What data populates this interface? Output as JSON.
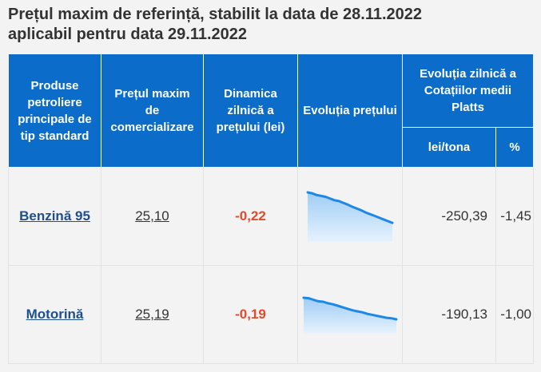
{
  "page": {
    "title_line1": "Prețul maxim de referință, stabilit la data de 28.11.2022",
    "title_line2": "aplicabil pentru data 29.11.2022"
  },
  "table": {
    "headers": {
      "product": "Produse petroliere principale de tip standard",
      "max_price": "Prețul maxim de comercializare",
      "daily_dynamics": "Dinamica zilnică a prețului (lei)",
      "price_evolution": "Evoluția prețului",
      "platts_evolution": "Evoluția zilnică a Cotațiilor medii Platts",
      "lei_tona": "lei/tona",
      "percent": "%"
    },
    "rows": [
      {
        "product": "Benzină 95",
        "max_price": "25,10",
        "daily_dynamics": "-0,22",
        "platts_lei_tona": "-250,39",
        "platts_percent": "-1,45",
        "trend": [
          25.8,
          25.78,
          25.74,
          25.72,
          25.7,
          25.66,
          25.62,
          25.6,
          25.56,
          25.52,
          25.47,
          25.43,
          25.39,
          25.34,
          25.3,
          25.26,
          25.22,
          25.18,
          25.14,
          25.1
        ]
      },
      {
        "product": "Motorină",
        "max_price": "25,19",
        "daily_dynamics": "-0,19",
        "platts_lei_tona": "-190,13",
        "platts_percent": "-1,00",
        "trend": [
          25.62,
          25.61,
          25.58,
          25.55,
          25.54,
          25.51,
          25.49,
          25.46,
          25.43,
          25.4,
          25.37,
          25.35,
          25.33,
          25.3,
          25.28,
          25.26,
          25.24,
          25.22,
          25.21,
          25.19
        ]
      }
    ]
  },
  "colors": {
    "header_bg": "#0b6cc9",
    "spark_line": "#1e88e5",
    "spark_fill_top": "#9fcdf5",
    "spark_fill_bottom": "#e6f2fd",
    "negative": "#e04a2d",
    "link": "#1f4f91"
  }
}
